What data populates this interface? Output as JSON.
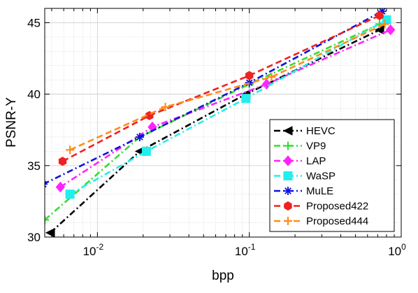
{
  "chart_data": {
    "type": "line",
    "title": "",
    "xlabel": "bpp",
    "ylabel": "PSNR-Y",
    "xscale": "log",
    "xlim": [
      0.0045,
      1.0
    ],
    "ylim": [
      30,
      46
    ],
    "xticks": [
      0.01,
      0.1,
      1
    ],
    "xtick_labels": [
      {
        "base": "10",
        "exp": "-2"
      },
      {
        "base": "10",
        "exp": "-1"
      },
      {
        "base": "10",
        "exp": "0"
      }
    ],
    "yticks": [
      30,
      35,
      40,
      45
    ],
    "ytick_labels": [
      "30",
      "35",
      "40",
      "45"
    ],
    "grid": true,
    "legend_position": "bottom-right",
    "series": [
      {
        "name": "HEVC",
        "color": "#000000",
        "dash": "dashdot",
        "marker": "triangle-left",
        "x": [
          0.0049,
          0.019,
          0.095,
          0.72
        ],
        "y": [
          30.3,
          36.0,
          40.0,
          44.5
        ]
      },
      {
        "name": "VP9",
        "color": "#33dd33",
        "dash": "dashdot",
        "marker": "plus",
        "x": [
          0.0045,
          0.019,
          0.1,
          0.72
        ],
        "y": [
          31.2,
          37.0,
          40.7,
          44.9
        ]
      },
      {
        "name": "LAP",
        "color": "#ff22ff",
        "dash": "dashdot",
        "marker": "diamond",
        "x": [
          0.0057,
          0.023,
          0.13,
          0.85
        ],
        "y": [
          33.5,
          37.7,
          40.7,
          44.5
        ]
      },
      {
        "name": "WaSP",
        "color": "#22eeee",
        "dash": "dashdot",
        "marker": "square",
        "x": [
          0.0066,
          0.021,
          0.095,
          0.8
        ],
        "y": [
          33.0,
          36.0,
          39.7,
          45.2
        ]
      },
      {
        "name": "MuLE",
        "color": "#1111dd",
        "dash": "dashdot",
        "marker": "star",
        "x": [
          0.0044,
          0.019,
          0.1,
          0.75
        ],
        "y": [
          33.7,
          37.0,
          40.8,
          45.8
        ]
      },
      {
        "name": "Proposed422",
        "color": "#ee2222",
        "dash": "dashed",
        "marker": "hexagon",
        "x": [
          0.0059,
          0.022,
          0.1,
          0.72
        ],
        "y": [
          35.3,
          38.5,
          41.3,
          45.5
        ]
      },
      {
        "name": "Proposed444",
        "color": "#ff8c1a",
        "dash": "dashed",
        "marker": "plus",
        "x": [
          0.0066,
          0.028,
          0.14,
          0.78
        ],
        "y": [
          36.1,
          39.1,
          41.2,
          44.9
        ]
      }
    ]
  }
}
